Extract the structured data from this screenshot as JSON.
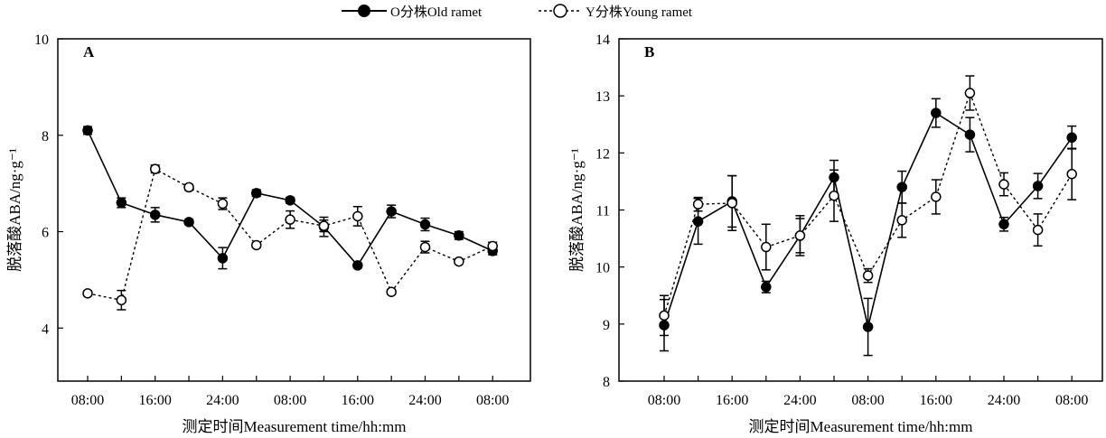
{
  "legend": {
    "old_label": "O分株Old ramet",
    "young_label": "Y分株Young ramet",
    "placement": "top-center"
  },
  "chart_data": [
    {
      "type": "line",
      "panel_label": "A",
      "xlabel": "测定时间Measurement time/hh:mm",
      "ylabel": "脱落酸ABA/ng·g⁻¹",
      "categories": [
        "08:00",
        "12:00",
        "16:00",
        "20:00",
        "24:00",
        "04:00",
        "08:00",
        "12:00",
        "16:00",
        "20:00",
        "24:00",
        "04:00",
        "08:00"
      ],
      "x_tick_labels": [
        "08:00",
        "16:00",
        "24:00",
        "08:00",
        "16:00",
        "24:00",
        "08:00"
      ],
      "y_ticks": [
        4,
        6,
        8,
        10
      ],
      "ylim": [
        2.9,
        10
      ],
      "series": [
        {
          "name": "O分株Old ramet",
          "values": [
            8.1,
            6.6,
            6.35,
            6.2,
            5.45,
            6.8,
            6.65,
            6.1,
            5.3,
            6.42,
            6.15,
            5.92,
            5.6
          ],
          "errors": [
            0.08,
            0.1,
            0.15,
            0.05,
            0.22,
            0.07,
            0.06,
            0.2,
            0.05,
            0.13,
            0.13,
            0.08,
            0.08
          ]
        },
        {
          "name": "Y分株Young ramet",
          "values": [
            4.72,
            4.58,
            7.3,
            6.92,
            6.58,
            5.72,
            6.25,
            6.12,
            6.32,
            4.75,
            5.68,
            5.38,
            5.7
          ],
          "errors": [
            0.05,
            0.2,
            0.08,
            0.06,
            0.12,
            0.05,
            0.18,
            0.12,
            0.2,
            0.05,
            0.12,
            0.05,
            0.08
          ]
        }
      ],
      "grid": false
    },
    {
      "type": "line",
      "panel_label": "B",
      "xlabel": "测定时间Measurement time/hh:mm",
      "ylabel": "脱落酸ABA/ng·g⁻¹",
      "categories": [
        "08:00",
        "12:00",
        "16:00",
        "20:00",
        "24:00",
        "04:00",
        "08:00",
        "12:00",
        "16:00",
        "20:00",
        "24:00",
        "04:00",
        "08:00"
      ],
      "x_tick_labels": [
        "08:00",
        "16:00",
        "24:00",
        "08:00",
        "16:00",
        "24:00",
        "08:00"
      ],
      "y_ticks": [
        8,
        9,
        10,
        11,
        12,
        13,
        14
      ],
      "ylim": [
        8,
        14
      ],
      "series": [
        {
          "name": "O分株Old ramet",
          "values": [
            8.98,
            10.8,
            11.15,
            9.65,
            10.55,
            11.57,
            8.95,
            11.4,
            12.7,
            12.32,
            10.75,
            11.42,
            12.27
          ],
          "errors": [
            0.45,
            0.4,
            0.45,
            0.1,
            0.3,
            0.3,
            0.5,
            0.28,
            0.25,
            0.3,
            0.12,
            0.22,
            0.2
          ]
        },
        {
          "name": "Y分株Young ramet",
          "values": [
            9.15,
            11.1,
            11.12,
            10.35,
            10.55,
            11.25,
            9.85,
            10.82,
            11.23,
            13.05,
            11.45,
            10.65,
            11.63
          ],
          "errors": [
            0.35,
            0.12,
            0.48,
            0.4,
            0.35,
            0.45,
            0.12,
            0.3,
            0.3,
            0.3,
            0.2,
            0.28,
            0.45
          ]
        }
      ],
      "grid": false
    }
  ]
}
